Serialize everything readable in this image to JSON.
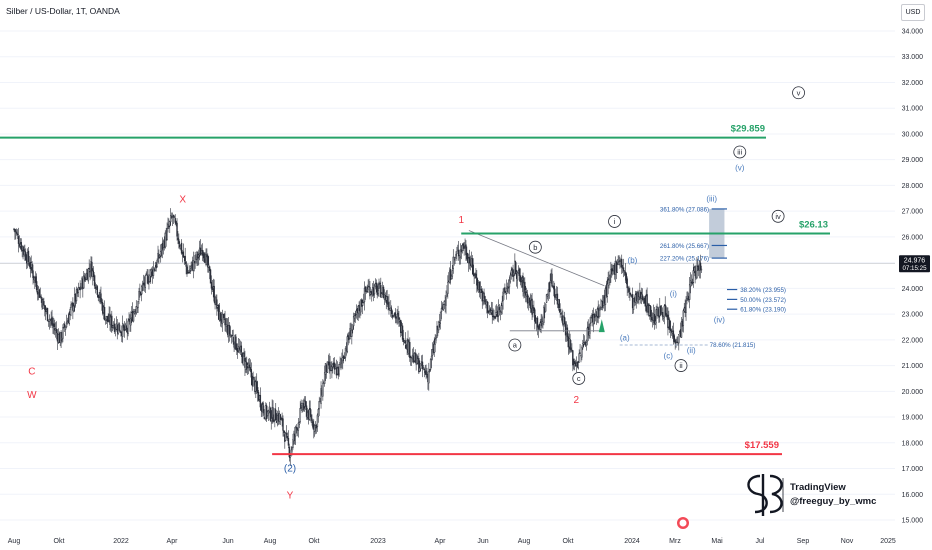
{
  "header": {
    "title": "Silber / US-Dollar, 1T, OANDA",
    "currency": "USD"
  },
  "price_tag": {
    "value": "24.976",
    "time": "07:15:25"
  },
  "chart_data": {
    "type": "candlestick",
    "y_axis_ticks": [
      "15.000",
      "16.000",
      "17.000",
      "18.000",
      "19.000",
      "20.000",
      "21.000",
      "22.000",
      "23.000",
      "24.000",
      "25.000",
      "26.000",
      "27.000",
      "28.000",
      "29.000",
      "30.000",
      "31.000",
      "32.000",
      "33.000",
      "34.000"
    ],
    "x_axis_ticks": [
      "Aug",
      "Okt",
      "2022",
      "Apr",
      "Jun",
      "Aug",
      "Okt",
      "2023",
      "Apr",
      "Jun",
      "Aug",
      "Okt",
      "2024",
      "Mrz",
      "Mai",
      "Jul",
      "Sep",
      "Nov",
      "2025"
    ],
    "ylim": [
      14.8,
      35.1
    ],
    "price_path": [
      [
        2021.58,
        26.3
      ],
      [
        2021.64,
        25.0
      ],
      [
        2021.7,
        23.2
      ],
      [
        2021.76,
        22.0
      ],
      [
        2021.82,
        23.6
      ],
      [
        2021.88,
        24.9
      ],
      [
        2021.94,
        22.8
      ],
      [
        2022.02,
        22.3
      ],
      [
        2022.08,
        24.0
      ],
      [
        2022.14,
        25.0
      ],
      [
        2022.2,
        26.8
      ],
      [
        2022.26,
        24.6
      ],
      [
        2022.32,
        25.6
      ],
      [
        2022.38,
        23.0
      ],
      [
        2022.44,
        22.0
      ],
      [
        2022.5,
        20.8
      ],
      [
        2022.56,
        19.2
      ],
      [
        2022.62,
        19.0
      ],
      [
        2022.66,
        17.6
      ],
      [
        2022.71,
        19.5
      ],
      [
        2022.76,
        18.6
      ],
      [
        2022.8,
        20.9
      ],
      [
        2022.85,
        20.8
      ],
      [
        2022.9,
        22.4
      ],
      [
        2022.96,
        24.0
      ],
      [
        2023.02,
        23.9
      ],
      [
        2023.08,
        22.8
      ],
      [
        2023.14,
        21.3
      ],
      [
        2023.2,
        20.6
      ],
      [
        2023.24,
        22.5
      ],
      [
        2023.3,
        25.1
      ],
      [
        2023.34,
        25.7
      ],
      [
        2023.38,
        24.6
      ],
      [
        2023.42,
        23.5
      ],
      [
        2023.46,
        22.8
      ],
      [
        2023.5,
        23.8
      ],
      [
        2023.54,
        24.8
      ],
      [
        2023.58,
        23.9
      ],
      [
        2023.64,
        22.4
      ],
      [
        2023.68,
        24.4
      ],
      [
        2023.73,
        22.8
      ],
      [
        2023.77,
        21.1
      ],
      [
        2023.79,
        21.2
      ],
      [
        2023.84,
        22.8
      ],
      [
        2023.88,
        23.3
      ],
      [
        2023.92,
        24.6
      ],
      [
        2023.95,
        25.2
      ],
      [
        2024.0,
        23.4
      ],
      [
        2024.04,
        23.8
      ],
      [
        2024.08,
        22.8
      ],
      [
        2024.12,
        23.2
      ],
      [
        2024.15,
        22.3
      ],
      [
        2024.18,
        22.0
      ],
      [
        2024.21,
        23.4
      ],
      [
        2024.24,
        24.6
      ],
      [
        2024.27,
        24.98
      ]
    ],
    "horizontal_levels": [
      {
        "label": "$29.859",
        "value": 29.859,
        "color": "#26a269"
      },
      {
        "label": "$26.13",
        "value": 26.13,
        "color": "#26a269"
      },
      {
        "label": "$17.559",
        "value": 17.559,
        "color": "#f23645"
      }
    ],
    "fib_levels": [
      {
        "label": "361.80% (27.086)",
        "value": 27.086
      },
      {
        "label": "261.80% (25.667)",
        "value": 25.667
      },
      {
        "label": "227.20% (25.176)",
        "value": 25.176
      },
      {
        "label": "38.20% (23.955)",
        "value": 23.955
      },
      {
        "label": "50.00% (23.572)",
        "value": 23.572
      },
      {
        "label": "61.80% (23.190)",
        "value": 23.19
      },
      {
        "label": "78.60% (21.815)",
        "value": 21.815
      }
    ],
    "wave_labels": [
      {
        "text": "X",
        "x": 2022.24,
        "y": 27.5,
        "style": "red"
      },
      {
        "text": "C",
        "x": 2021.65,
        "y": 20.8,
        "style": "red"
      },
      {
        "text": "W",
        "x": 2021.65,
        "y": 19.9,
        "style": "red"
      },
      {
        "text": "(2)",
        "x": 2022.66,
        "y": 17.0,
        "style": "blue"
      },
      {
        "text": "Y",
        "x": 2022.66,
        "y": 16.0,
        "style": "red"
      },
      {
        "text": "1",
        "x": 2023.33,
        "y": 26.7,
        "style": "red"
      },
      {
        "text": "2",
        "x": 2023.78,
        "y": 19.7,
        "style": "red"
      },
      {
        "text": "a",
        "x": 2023.54,
        "y": 21.8,
        "style": "circle"
      },
      {
        "text": "b",
        "x": 2023.62,
        "y": 25.6,
        "style": "circle"
      },
      {
        "text": "c",
        "x": 2023.79,
        "y": 20.5,
        "style": "circle"
      },
      {
        "text": "i",
        "x": 2023.93,
        "y": 26.6,
        "style": "circle"
      },
      {
        "text": "ii",
        "x": 2024.19,
        "y": 21.0,
        "style": "circle"
      },
      {
        "text": "iii",
        "x": 2024.42,
        "y": 29.3,
        "style": "circle"
      },
      {
        "text": "iv",
        "x": 2024.57,
        "y": 26.8,
        "style": "circle"
      },
      {
        "text": "v",
        "x": 2024.65,
        "y": 31.6,
        "style": "circle"
      },
      {
        "text": "(a)",
        "x": 2023.97,
        "y": 22.1,
        "style": "blue"
      },
      {
        "text": "(b)",
        "x": 2024.0,
        "y": 25.1,
        "style": "blue"
      },
      {
        "text": "(c)",
        "x": 2024.14,
        "y": 21.4,
        "style": "blue"
      },
      {
        "text": "(i)",
        "x": 2024.16,
        "y": 23.8,
        "style": "blue"
      },
      {
        "text": "(ii)",
        "x": 2024.23,
        "y": 21.6,
        "style": "blue"
      },
      {
        "text": "(iii)",
        "x": 2024.31,
        "y": 27.5,
        "style": "blue"
      },
      {
        "text": "(iv)",
        "x": 2024.34,
        "y": 22.8,
        "style": "blue"
      },
      {
        "text": "(v)",
        "x": 2024.42,
        "y": 28.7,
        "style": "blue"
      }
    ]
  },
  "watermark": {
    "brand": "TradingView",
    "handle": "@freeguy_by_wmc"
  },
  "colors": {
    "candle_up": "#2a2e39",
    "candle_down": "#2a2e39",
    "green_line": "#26a269",
    "red_line": "#f23645",
    "fib_blue": "#2a5ea7",
    "wave_blue": "#4a7bbd",
    "wave_red": "#f23645"
  }
}
